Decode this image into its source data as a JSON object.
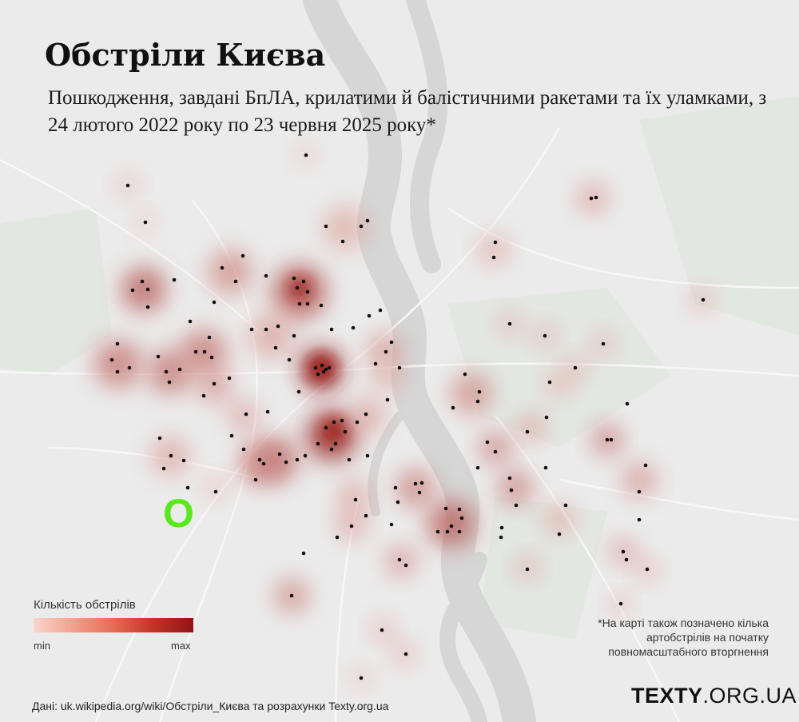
{
  "title": "Обстріли Києва",
  "subtitle": "Пошкодження, завдані БпЛА, крилатими й балістичними ракетами та їх уламками, з 24 лютого 2022 року по 23 червня 2025 року*",
  "legend": {
    "title": "Кількість обстрілів",
    "min": "min",
    "max": "max"
  },
  "footnote": "*На карті також позначено кілька артобстрілів на початку повномасштабного вторгнення",
  "source": "Дані: uk.wikipedia.org/wiki/Обстріли_Києва та розрахунки Texty.org.ua",
  "brand": {
    "bold": "TEXTY",
    "thin": ".ORG.UA"
  },
  "marker_label": "O",
  "colors": {
    "background": "#ebebeb",
    "river": "#d9d9d9",
    "heat_min": "#f8d6cc",
    "heat_max": "#8f1515",
    "marker": "#59e91a",
    "point": "#111111"
  }
}
